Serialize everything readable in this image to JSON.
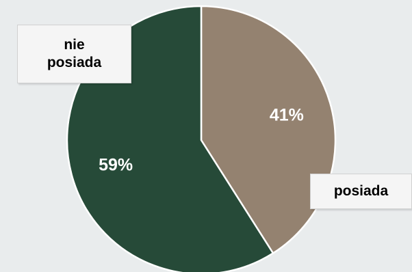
{
  "chart_data": {
    "type": "pie",
    "slices": [
      {
        "label": "posiada",
        "value": 41,
        "display": "41%",
        "color": "#948270"
      },
      {
        "label": "nie posiada",
        "value": 59,
        "display": "59%",
        "color": "#264a38"
      }
    ],
    "title": "",
    "legend_placement": "callout-labels",
    "stroke_color": "#ffffff"
  },
  "labels": {
    "nie_line1": "nie",
    "nie_line2": "posiada",
    "posiada": "posiada"
  },
  "colors": {
    "background": "#e9eced",
    "label_text": "#ffffff",
    "callout_bg": "#f5f5f5"
  }
}
